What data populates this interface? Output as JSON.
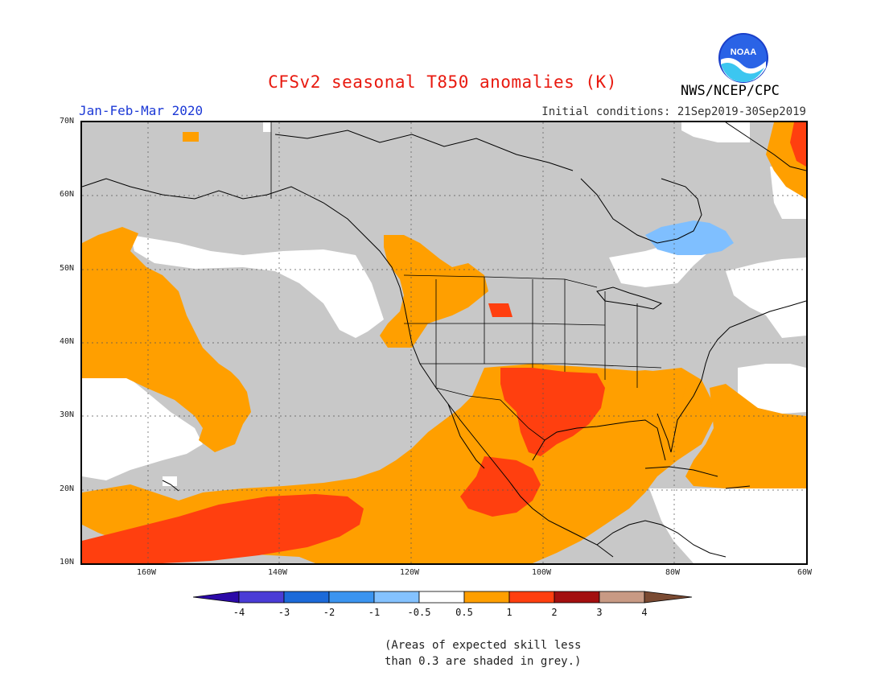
{
  "header": {
    "title": "CFSv2 seasonal T850 anomalies (K)",
    "season": "Jan-Feb-Mar 2020",
    "initial_conditions": "Initial conditions: 21Sep2019-30Sep2019",
    "agency": "NWS/NCEP/CPC",
    "logo_text": "NOAA"
  },
  "map": {
    "lat_labels": [
      "70N",
      "60N",
      "50N",
      "40N",
      "30N",
      "20N",
      "10N"
    ],
    "lon_labels": [
      "160W",
      "140W",
      "120W",
      "100W",
      "80W",
      "60W"
    ],
    "colors": {
      "grey_no_skill": "#c8c8c8",
      "near_zero": "#ffffff",
      "warm_0_5_to_1": "#ff9f00",
      "warm_1_to_2": "#ff3f0f",
      "warm_2_to_3": "#a81010",
      "cool_minus1_to_minus0_5": "#7fbfff",
      "coast_lines": "#000000"
    }
  },
  "colorbar": {
    "labels": [
      "-4",
      "-3",
      "-2",
      "-1",
      "-0.5",
      "0.5",
      "1",
      "2",
      "3",
      "4"
    ],
    "colors": [
      "#2c0aa8",
      "#4a3cd6",
      "#1c6ad9",
      "#3b94f0",
      "#84c2ff",
      "#ffffff",
      "#ff9f00",
      "#ff3f0f",
      "#a30f0f",
      "#c89a84",
      "#7a4a32"
    ]
  },
  "footnote": {
    "line1": "(Areas of expected skill less",
    "line2": "than 0.3 are shaded in grey.)"
  }
}
